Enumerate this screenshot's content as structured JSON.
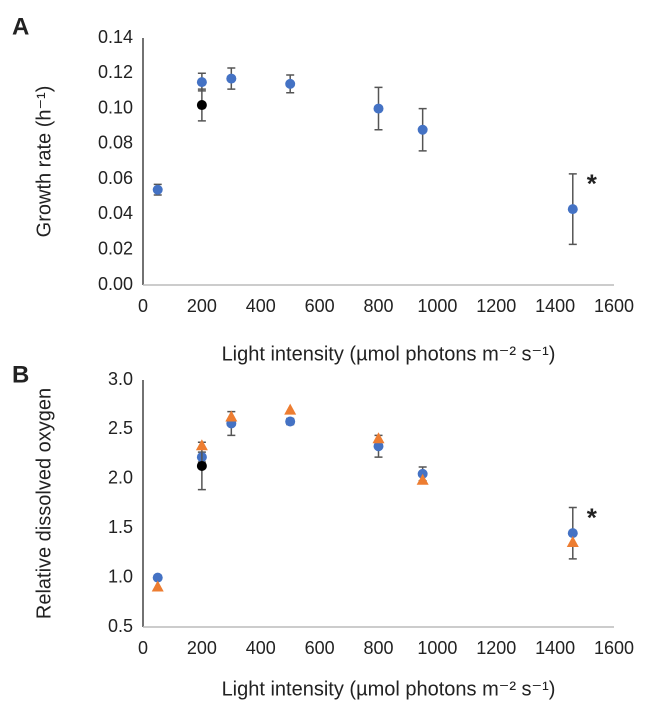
{
  "chart_data": [
    {
      "type": "scatter",
      "panel_label": "A",
      "ylabel": "Growth rate (h⁻¹)",
      "xlabel": "Light intensity (µmol photons m⁻² s⁻¹)",
      "annotation": "*",
      "xlim": [
        0,
        1600
      ],
      "xticks": [
        0,
        200,
        400,
        600,
        800,
        1000,
        1200,
        1400,
        1600
      ],
      "ylim": [
        0,
        0.14
      ],
      "yticks": [
        {
          "value": 0,
          "label": "0.00"
        },
        0.02,
        0.04,
        0.06,
        0.08,
        {
          "value": 0.1,
          "label": "0.10"
        },
        0.12,
        0.14
      ],
      "series": [
        {
          "color": "#4472c4",
          "marker": "circle",
          "x": [
            50,
            200,
            300,
            500,
            800,
            950,
            1460
          ],
          "values": [
            0.054,
            0.115,
            0.117,
            0.114,
            0.1,
            0.088,
            0.043
          ],
          "errors": [
            0.003,
            0.005,
            0.006,
            0.005,
            0.012,
            0.012,
            0.02
          ]
        },
        {
          "color": "#000000",
          "marker": "circle",
          "x": [
            200
          ],
          "values": [
            0.102
          ],
          "errors": [
            0.009
          ]
        }
      ]
    },
    {
      "type": "scatter",
      "panel_label": "B",
      "ylabel": "Relative dissolved oxygen",
      "xlabel": "Light intensity  (µmol photons  m⁻² s⁻¹)",
      "annotation": "*",
      "xlim": [
        0,
        1600
      ],
      "xticks": [
        0,
        200,
        400,
        600,
        800,
        1000,
        1200,
        1400,
        1600
      ],
      "ylim": [
        0.5,
        3.0
      ],
      "yticks": [
        0.5,
        {
          "value": 1,
          "label": "1.0"
        },
        1.5,
        {
          "value": 2,
          "label": "2.0"
        },
        2.5,
        {
          "value": 3,
          "label": "3.0"
        }
      ],
      "series": [
        {
          "color": "#4472c4",
          "marker": "circle",
          "x": [
            50,
            200,
            300,
            500,
            800,
            950,
            1460
          ],
          "values": [
            1.0,
            2.22,
            2.56,
            2.58,
            2.33,
            2.05,
            1.45
          ],
          "errors": [
            0.02,
            0.05,
            0.12,
            0.03,
            0.11,
            0.07,
            0.26
          ]
        },
        {
          "color": "#000000",
          "marker": "circle",
          "x": [
            200
          ],
          "values": [
            2.13
          ],
          "errors": [
            0.24
          ]
        },
        {
          "color": "#ed7d31",
          "marker": "triangle",
          "x": [
            50,
            200,
            300,
            500,
            800,
            950,
            1460
          ],
          "values": [
            0.91,
            2.34,
            2.63,
            2.7,
            2.41,
            1.99,
            1.36
          ]
        }
      ]
    }
  ]
}
